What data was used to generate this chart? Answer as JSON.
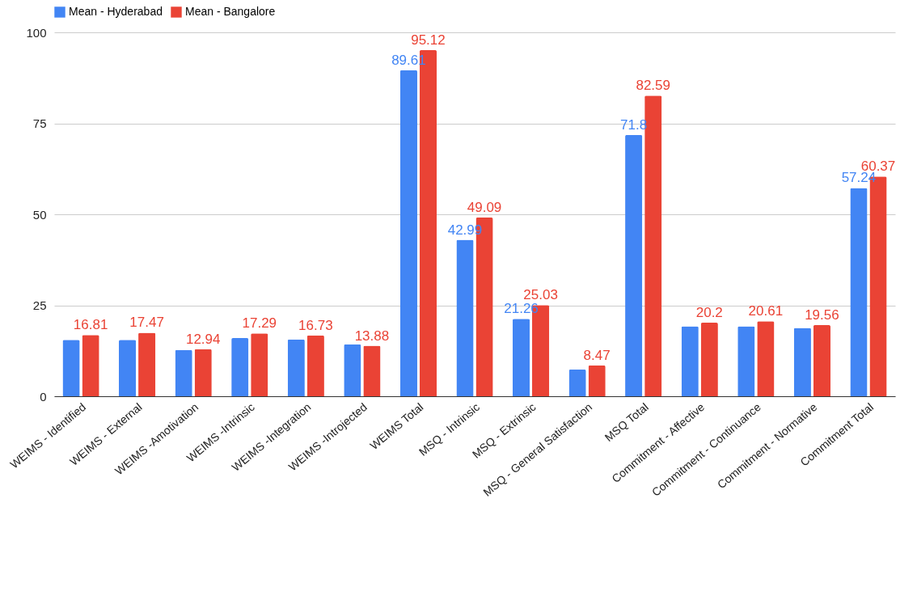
{
  "chart_data": {
    "type": "bar",
    "categories": [
      "WEIMS - Identified",
      "WEIMS - External",
      "WEIMS -Amotivation",
      "WEIMS -Intrinsic",
      "WEIMS -Integration",
      "WEIMS -Introjected",
      "WEIMS Total",
      "MSQ - Intrinsic",
      "MSQ - Extrinsic",
      "MSQ - General Satisfaction",
      "MSQ Total",
      "Commitment - Affective",
      "Commitment - Continuance",
      "Commitment - Normative",
      "Commitment Total"
    ],
    "series": [
      {
        "name": "Mean - Hyderabad",
        "color": "#4285f4",
        "values": [
          15.5,
          15.5,
          12.7,
          16.0,
          15.6,
          14.3,
          89.61,
          42.99,
          21.26,
          7.35,
          71.8,
          19.25,
          19.2,
          18.8,
          57.24
        ],
        "value_labels": [
          null,
          null,
          null,
          null,
          null,
          null,
          "89.61",
          "42.99",
          "21.26",
          null,
          "71.8",
          null,
          null,
          null,
          "57.24"
        ]
      },
      {
        "name": "Mean - Bangalore",
        "color": "#ea4335",
        "values": [
          16.81,
          17.47,
          12.94,
          17.29,
          16.73,
          13.88,
          95.12,
          49.09,
          25.03,
          8.47,
          82.59,
          20.2,
          20.61,
          19.56,
          60.37
        ],
        "value_labels": [
          "16.81",
          "17.47",
          "12.94",
          "17.29",
          "16.73",
          "13.88",
          "95.12",
          "49.09",
          "25.03",
          "8.47",
          "82.59",
          "20.2",
          "20.61",
          "19.56",
          "60.37"
        ]
      }
    ],
    "ylim": [
      0,
      100
    ],
    "yticks": [
      0,
      25,
      50,
      75,
      100
    ],
    "grid": "y",
    "legend": "top"
  }
}
